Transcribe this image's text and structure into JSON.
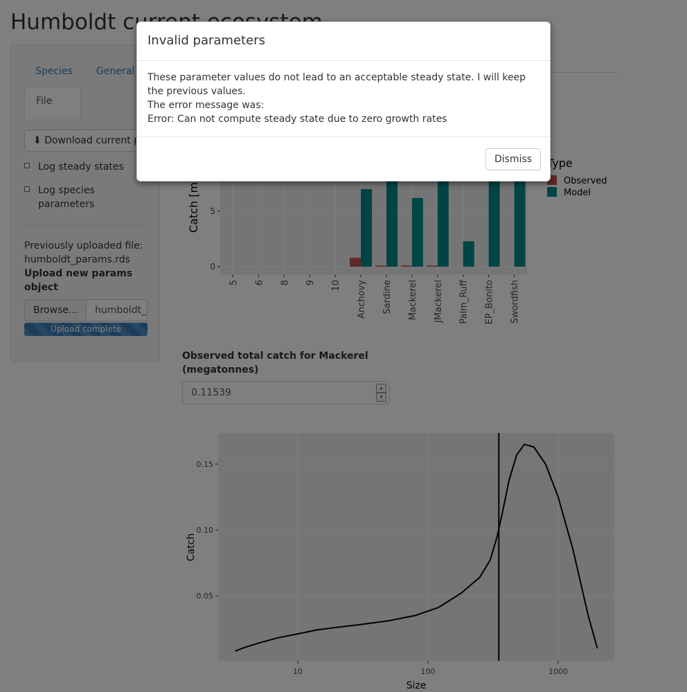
{
  "page": {
    "title": "Humboldt current ecosystem"
  },
  "tabs": [
    "Species",
    "General",
    "File"
  ],
  "sidebar": {
    "download_label": "Download current params",
    "checkboxes": [
      "Log steady states",
      "Log species parameters"
    ],
    "prev_label": "Previously uploaded file:",
    "prev_file": "humboldt_params.rds",
    "upload_label": "Upload new params object",
    "browse_label": "Browse...",
    "file_value": "humboldt_params.rds",
    "progress_label": "Upload complete"
  },
  "mackerel_input": {
    "label": "Observed total catch for Mackerel (megatonnes)",
    "value": "0.11539"
  },
  "modal": {
    "title": "Invalid parameters",
    "lines": [
      "These parameter values do not lead to an acceptable steady state. I will keep the previous values.",
      "The error message was:",
      "Error: Can not compute steady state due to zero growth rates"
    ],
    "dismiss_label": "Dismiss"
  },
  "chart_data": [
    {
      "type": "bar",
      "ylabel": "Catch [m",
      "categories": [
        "5",
        "6",
        "8",
        "9",
        "10",
        "Anchovy",
        "Sardine",
        "Mackerel",
        "JMackerel",
        "Palm_Ruff",
        "EP_Bonito",
        "Swordfish"
      ],
      "y_ticks": [
        0,
        5
      ],
      "legend_title": "Type",
      "legend_position": "right",
      "series": [
        {
          "name": "Observed",
          "color": "#c0504d",
          "values": [
            0,
            0,
            0,
            0,
            0,
            0.8,
            0.1,
            0.1,
            0.1,
            0,
            0,
            0
          ]
        },
        {
          "name": "Model",
          "color": "#008b8b",
          "values": [
            0,
            0,
            0,
            0,
            0,
            7.0,
            8.5,
            6.2,
            8.5,
            2.3,
            8.5,
            8.5
          ]
        }
      ]
    },
    {
      "type": "line",
      "xlabel": "Size",
      "ylabel": "Catch",
      "x_scale": "log",
      "x_ticks": [
        "10",
        "100",
        "1000"
      ],
      "y_ticks": [
        "0.05",
        "0.10",
        "0.15"
      ],
      "vline_x": 350,
      "x": [
        3.3,
        4,
        5,
        7,
        10,
        14,
        20,
        30,
        50,
        80,
        120,
        180,
        250,
        300,
        340,
        380,
        420,
        480,
        550,
        650,
        800,
        1000,
        1300,
        1700,
        2000
      ],
      "y": [
        0.008,
        0.011,
        0.014,
        0.018,
        0.021,
        0.024,
        0.026,
        0.028,
        0.031,
        0.035,
        0.041,
        0.052,
        0.064,
        0.077,
        0.095,
        0.117,
        0.138,
        0.157,
        0.165,
        0.163,
        0.15,
        0.125,
        0.085,
        0.035,
        0.01
      ]
    }
  ]
}
